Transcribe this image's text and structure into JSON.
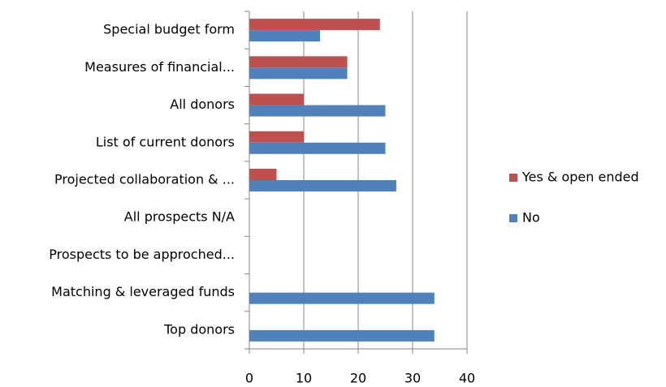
{
  "chart_data": {
    "type": "hbar",
    "categories": [
      "Special budget form",
      "Measures of financial...",
      "All donors",
      "List of current donors",
      "Projected collaboration & ...",
      "All prospects N/A",
      "Prospects to be approched...",
      "Matching & leveraged funds",
      "Top donors"
    ],
    "series": [
      {
        "name": "Yes & open ended",
        "color": "#c0504d",
        "values": [
          24,
          18,
          10,
          10,
          5,
          0,
          0,
          0,
          0
        ]
      },
      {
        "name": "No",
        "color": "#4f81bd",
        "values": [
          13,
          18,
          25,
          25,
          27,
          0,
          0,
          34,
          34
        ]
      }
    ],
    "xlim": [
      0,
      40
    ],
    "xticks": [
      0,
      10,
      20,
      30,
      40
    ],
    "grid": true,
    "legend": "right"
  }
}
